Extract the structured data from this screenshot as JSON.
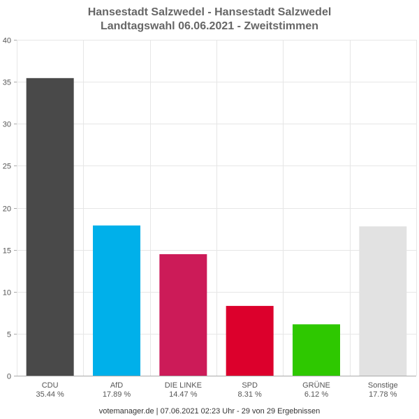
{
  "chart_data": {
    "type": "bar",
    "title_line1": "Hansestadt Salzwedel - Hansestadt Salzwedel",
    "title_line2": "Landtagswahl 06.06.2021  - Zweitstimmen",
    "categories": [
      "CDU",
      "AfD",
      "DIE LINKE",
      "SPD",
      "GRÜNE",
      "Sonstige"
    ],
    "values": [
      35.44,
      17.89,
      14.47,
      8.31,
      6.12,
      17.78
    ],
    "value_labels": [
      "35.44 %",
      "17.89 %",
      "14.47 %",
      "8.31 %",
      "6.12 %",
      "17.78 %"
    ],
    "colors": [
      "#494949",
      "#00b0ea",
      "#cc1b58",
      "#dc002c",
      "#2ec800",
      "#e2e2e2"
    ],
    "ylim": [
      0,
      40
    ],
    "yticks": [
      0,
      5,
      10,
      15,
      20,
      25,
      30,
      35,
      40
    ],
    "grid": true,
    "xlabel": "",
    "ylabel": ""
  },
  "footer": "votemanager.de | 07.06.2021 02:23 Uhr - 29 von 29 Ergebnissen"
}
